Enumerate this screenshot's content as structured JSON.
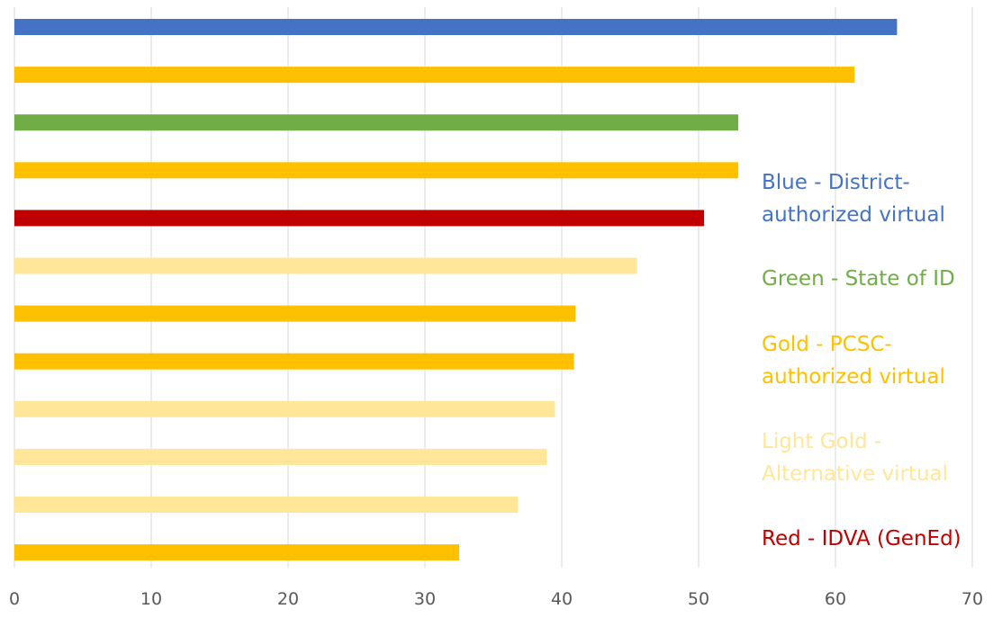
{
  "chart_data": {
    "type": "bar",
    "orientation": "horizontal",
    "xlim": [
      0,
      70
    ],
    "xticks": [
      0,
      10,
      20,
      30,
      40,
      50,
      60,
      70
    ],
    "grid": true,
    "legend_position": "right",
    "bars": [
      {
        "value": 64.5,
        "color": "#4472C4"
      },
      {
        "value": 61.4,
        "color": "#FFC000"
      },
      {
        "value": 52.9,
        "color": "#70AD47"
      },
      {
        "value": 52.9,
        "color": "#FFC000"
      },
      {
        "value": 50.4,
        "color": "#C00000"
      },
      {
        "value": 45.5,
        "color": "#FFE699"
      },
      {
        "value": 41.0,
        "color": "#FFC000"
      },
      {
        "value": 40.9,
        "color": "#FFC000"
      },
      {
        "value": 39.5,
        "color": "#FFE699"
      },
      {
        "value": 38.9,
        "color": "#FFE699"
      },
      {
        "value": 36.8,
        "color": "#FFE699"
      },
      {
        "value": 32.5,
        "color": "#FFC000"
      }
    ],
    "legend": [
      {
        "lines": [
          "Blue - District-",
          "authorized virtual"
        ],
        "color": "#4472C4"
      },
      {
        "lines": [
          "Green - State of ID"
        ],
        "color": "#70AD47"
      },
      {
        "lines": [
          "Gold - PCSC-",
          "authorized virtual"
        ],
        "color": "#FFC000"
      },
      {
        "lines": [
          "Light Gold -",
          "Alternative virtual"
        ],
        "color": "#FFE699"
      },
      {
        "lines": [
          "Red - IDVA (GenEd)"
        ],
        "color": "#C00000"
      }
    ]
  }
}
